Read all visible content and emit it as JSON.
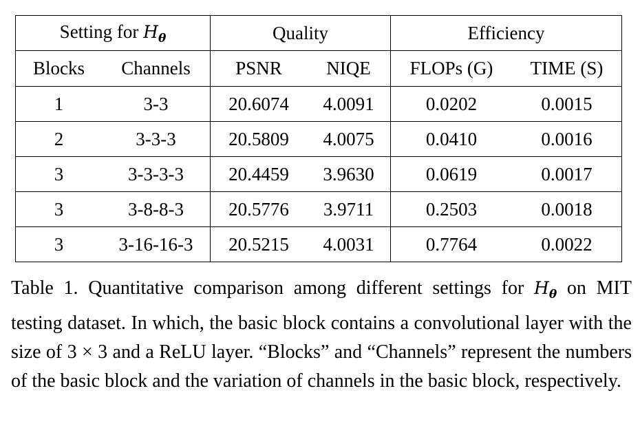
{
  "table": {
    "group_headers": {
      "setting": "Setting for",
      "setting_symbol": "H",
      "setting_subscript": "θ",
      "quality": "Quality",
      "efficiency": "Efficiency"
    },
    "columns": [
      "Blocks",
      "Channels",
      "PSNR",
      "NIQE",
      "FLOPs (G)",
      "TIME (S)"
    ],
    "rows": [
      {
        "blocks": "1",
        "channels": "3-3",
        "psnr": "20.6074",
        "niqe": "4.0091",
        "flops": "0.0202",
        "time": "0.0015"
      },
      {
        "blocks": "2",
        "channels": "3-3-3",
        "psnr": "20.5809",
        "niqe": "4.0075",
        "flops": "0.0410",
        "time": "0.0016"
      },
      {
        "blocks": "3",
        "channels": "3-3-3-3",
        "psnr": "20.4459",
        "niqe": "3.9630",
        "flops": "0.0619",
        "time": "0.0017"
      },
      {
        "blocks": "3",
        "channels": "3-8-8-3",
        "psnr": "20.5776",
        "niqe": "3.9711",
        "flops": "0.2503",
        "time": "0.0018"
      },
      {
        "blocks": "3",
        "channels": "3-16-16-3",
        "psnr": "20.5215",
        "niqe": "4.0031",
        "flops": "0.7764",
        "time": "0.0022"
      }
    ]
  },
  "caption": {
    "part1": "Table 1. Quantitative comparison among different settings for ",
    "symbol": "H",
    "subscript": "θ",
    "part2": " on MIT testing dataset. In which, the basic block contains a convolutional layer with the size of 3 × 3 and a ReLU layer. “Blocks” and “Channels” represent the numbers of the basic block and the variation of channels in the basic block, respectively."
  }
}
